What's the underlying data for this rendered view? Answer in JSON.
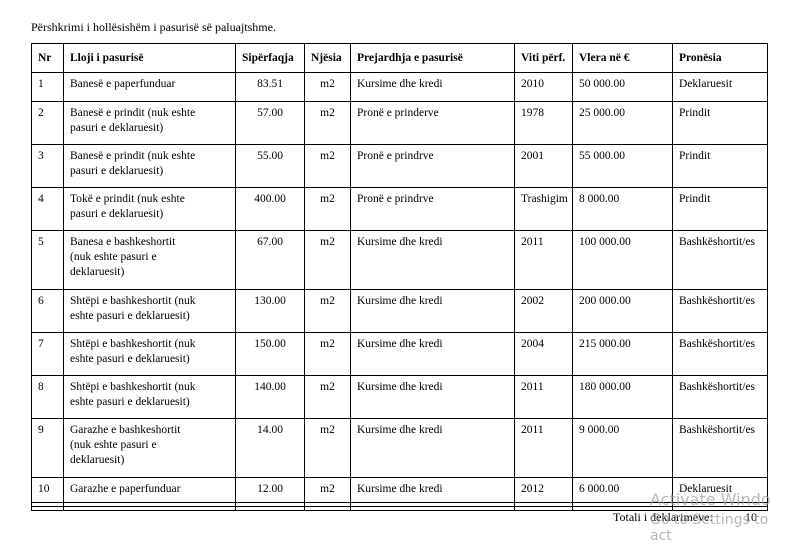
{
  "caption": "Përshkrimi i hollësishëm i pasurisë së paluajtshme.",
  "table": {
    "headers": [
      "Nr",
      "Lloji i pasurisë",
      "Sipërfaqja",
      "Njësia",
      "Prejardhja e pasurisë",
      "Viti përf.",
      "Vlera në €",
      "Pronësia"
    ],
    "rows": [
      [
        "1",
        [
          "Banesë e paperfunduar"
        ],
        "83.51",
        "m2",
        "Kursime dhe kredi",
        "2010",
        "50 000.00",
        "Deklaruesit"
      ],
      [
        "2",
        [
          "Banesë e prindit (nuk eshte",
          "pasuri e deklaruesit)"
        ],
        "57.00",
        "m2",
        "Pronë e prinderve",
        "1978",
        "25 000.00",
        "Prindit"
      ],
      [
        "3",
        [
          "Banesë e prindit (nuk eshte",
          "pasuri e deklaruesit)"
        ],
        "55.00",
        "m2",
        "Pronë e prindrve",
        "2001",
        "55 000.00",
        "Prindit"
      ],
      [
        "4",
        [
          "Tokë e prindit (nuk eshte",
          "pasuri e deklaruesit)"
        ],
        "400.00",
        "m2",
        "Pronë e prindrve",
        "Trashigim",
        "8 000.00",
        "Prindit"
      ],
      [
        "5",
        [
          "Banesa e bashkeshortit",
          "(nuk eshte pasuri e",
          "deklaruesit)"
        ],
        "67.00",
        "m2",
        "Kursime dhe kredi",
        "2011",
        "100 000.00",
        "Bashkëshortit/es"
      ],
      [
        "6",
        [
          "Shtëpi e bashkeshortit (nuk",
          "eshte pasuri e deklaruesit)"
        ],
        "130.00",
        "m2",
        "Kursime dhe kredi",
        "2002",
        "200 000.00",
        "Bashkëshortit/es"
      ],
      [
        "7",
        [
          "Shtëpi e bashkeshortit (nuk",
          "eshte pasuri e deklaruesit)"
        ],
        "150.00",
        "m2",
        "Kursime dhe kredi",
        "2004",
        "215 000.00",
        "Bashkëshortit/es"
      ],
      [
        "8",
        [
          "Shtëpi e bashkeshortit (nuk",
          "eshte pasuri e deklaruesit)"
        ],
        "140.00",
        "m2",
        "Kursime dhe kredi",
        "2011",
        "180 000.00",
        "Bashkëshortit/es"
      ],
      [
        "9",
        [
          "Garazhe e bashkeshortit",
          "(nuk eshte pasuri e",
          "deklaruesit)"
        ],
        "14.00",
        "m2",
        "Kursime dhe kredi",
        "2011",
        "9 000.00",
        "Bashkëshortit/es"
      ],
      [
        "10",
        [
          "Garazhe e paperfunduar"
        ],
        "12.00",
        "m2",
        "Kursime dhe kredi",
        "2012",
        "6 000.00",
        "Deklaruesit"
      ]
    ]
  },
  "footer": {
    "label": "Totali i deklarimeve:",
    "value": "10"
  },
  "watermark": [
    "Activate Windo",
    "Go to Settings to act"
  ]
}
